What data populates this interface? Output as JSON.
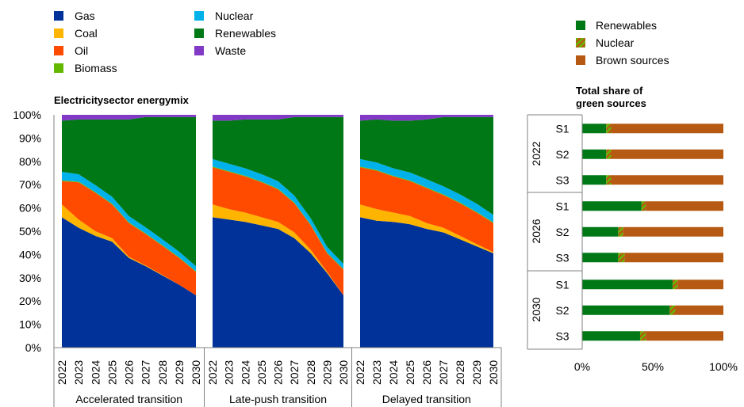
{
  "chart_data": [
    {
      "type": "area",
      "subtype": "stacked-100",
      "title": "Electricitysector energymix",
      "ylim": [
        0,
        100
      ],
      "y_ticks": [
        "0%",
        "10%",
        "20%",
        "30%",
        "40%",
        "50%",
        "60%",
        "70%",
        "80%",
        "90%",
        "100%"
      ],
      "grid": false,
      "legend": {
        "position": "top-left",
        "entries": [
          {
            "name": "Gas",
            "color": "#003299"
          },
          {
            "name": "Coal",
            "color": "#ffb400"
          },
          {
            "name": "Oil",
            "color": "#ff4b00"
          },
          {
            "name": "Biomass",
            "color": "#65b800"
          },
          {
            "name": "Nuclear",
            "color": "#00b1ea"
          },
          {
            "name": "Renewables",
            "color": "#007816"
          },
          {
            "name": "Waste",
            "color": "#8139c6"
          }
        ]
      },
      "x": [
        "2022",
        "2023",
        "2024",
        "2025",
        "2026",
        "2027",
        "2028",
        "2029",
        "2030"
      ],
      "panels": [
        {
          "label": "Accelerated transition",
          "series": [
            {
              "name": "Gas",
              "values": [
                56,
                51.5,
                48,
                45.5,
                38.5,
                35,
                31,
                27,
                22.5
              ]
            },
            {
              "name": "Coal",
              "values": [
                5.5,
                3.5,
                2,
                1.5,
                0.5,
                0.3,
                0.2,
                0,
                0
              ]
            },
            {
              "name": "Oil",
              "values": [
                10,
                16,
                16.5,
                14.5,
                14.5,
                13.5,
                12.5,
                11.5,
                10
              ]
            },
            {
              "name": "Biomass",
              "values": [
                0.3,
                0.3,
                0.3,
                0.3,
                0.3,
                0.3,
                0.3,
                0.3,
                0.3
              ]
            },
            {
              "name": "Nuclear",
              "values": [
                3.7,
                3.2,
                3,
                3,
                2.7,
                2.6,
                2.5,
                2.4,
                2.2
              ]
            },
            {
              "name": "Renewables",
              "values": [
                22,
                23.5,
                28.2,
                33.2,
                41.5,
                47.3,
                52.5,
                57.8,
                64
              ]
            },
            {
              "name": "Waste",
              "values": [
                2.5,
                2,
                2,
                2,
                2,
                1,
                1,
                1,
                1
              ]
            }
          ]
        },
        {
          "label": "Late-push transition",
          "series": [
            {
              "name": "Gas",
              "values": [
                56,
                55,
                54,
                52.5,
                51,
                47,
                40.5,
                32,
                22.5
              ]
            },
            {
              "name": "Coal",
              "values": [
                5.5,
                4.5,
                4,
                3.5,
                3,
                2.5,
                1.5,
                0.5,
                0
              ]
            },
            {
              "name": "Oil",
              "values": [
                16,
                16,
                15.5,
                15,
                14,
                12.5,
                10.5,
                8,
                11
              ]
            },
            {
              "name": "Biomass",
              "values": [
                0.3,
                0.3,
                0.3,
                0.3,
                0.3,
                0.3,
                0.3,
                0.3,
                0.3
              ]
            },
            {
              "name": "Nuclear",
              "values": [
                3.2,
                3.2,
                3.2,
                3.2,
                3.2,
                3,
                2.7,
                2.5,
                2.2
              ]
            },
            {
              "name": "Renewables",
              "values": [
                16.5,
                18.5,
                21,
                23.5,
                26.5,
                33.7,
                43.5,
                55.7,
                63
              ]
            },
            {
              "name": "Waste",
              "values": [
                2.5,
                2.5,
                2,
                2,
                2,
                1,
                1,
                1,
                1
              ]
            }
          ]
        },
        {
          "label": "Delayed transition",
          "series": [
            {
              "name": "Gas",
              "values": [
                56,
                54.5,
                54,
                53,
                51,
                49.5,
                46.5,
                43.5,
                40.5
              ]
            },
            {
              "name": "Coal",
              "values": [
                5.5,
                5,
                4,
                3.5,
                2.5,
                2,
                1.5,
                1,
                0.5
              ]
            },
            {
              "name": "Oil",
              "values": [
                16,
                16.5,
                15.5,
                15,
                15,
                14,
                14,
                13.5,
                12.5
              ]
            },
            {
              "name": "Biomass",
              "values": [
                0.3,
                0.3,
                0.3,
                0.3,
                0.3,
                0.3,
                0.3,
                0.3,
                0.3
              ]
            },
            {
              "name": "Nuclear",
              "values": [
                3.2,
                3.2,
                3.2,
                3.4,
                3.5,
                3.5,
                3.5,
                3.5,
                3.2
              ]
            },
            {
              "name": "Renewables",
              "values": [
                16.5,
                18.5,
                20.5,
                22.3,
                25.7,
                29.7,
                33.2,
                37.2,
                42
              ]
            },
            {
              "name": "Waste",
              "values": [
                2.5,
                2.5,
                2.5,
                2.5,
                2,
                1,
                1,
                1,
                1
              ]
            }
          ]
        }
      ]
    },
    {
      "type": "bar",
      "orientation": "horizontal",
      "subtype": "stacked-100",
      "title": "Total share of green sources",
      "xlim": [
        0,
        100
      ],
      "x_ticks": [
        "0%",
        "50%",
        "100%"
      ],
      "legend": {
        "position": "top",
        "entries": [
          {
            "name": "Renewables",
            "color": "#007816"
          },
          {
            "name": "Nuclear",
            "color": "#65b800",
            "pattern": "striped"
          },
          {
            "name": "Brown sources",
            "color": "#b65a13"
          }
        ]
      },
      "groups": [
        {
          "label": "2022",
          "bars": [
            {
              "label": "S1",
              "Renewables": 17,
              "Nuclear": 3.5,
              "Brown sources": 79.5
            },
            {
              "label": "S2",
              "Renewables": 17,
              "Nuclear": 3.5,
              "Brown sources": 79.5
            },
            {
              "label": "S3",
              "Renewables": 17,
              "Nuclear": 3.5,
              "Brown sources": 79.5
            }
          ]
        },
        {
          "label": "2026",
          "bars": [
            {
              "label": "S1",
              "Renewables": 42,
              "Nuclear": 3,
              "Brown sources": 55
            },
            {
              "label": "S2",
              "Renewables": 25.5,
              "Nuclear": 3.5,
              "Brown sources": 71
            }
          ]
        },
        {
          "label": "2030",
          "bars": [
            {
              "label": "S1",
              "Renewables": 64,
              "Nuclear": 3.5,
              "Brown sources": 32.5
            },
            {
              "label": "S2",
              "Renewables": 62,
              "Nuclear": 4,
              "Brown sources": 34
            },
            {
              "label": "S3",
              "Renewables": 41,
              "Nuclear": 4,
              "Brown sources": 55
            }
          ]
        }
      ],
      "bars_2026_s3": {
        "label": "S3",
        "Renewables": 25.5,
        "Nuclear": 4.5,
        "Brown sources": 70
      }
    }
  ]
}
